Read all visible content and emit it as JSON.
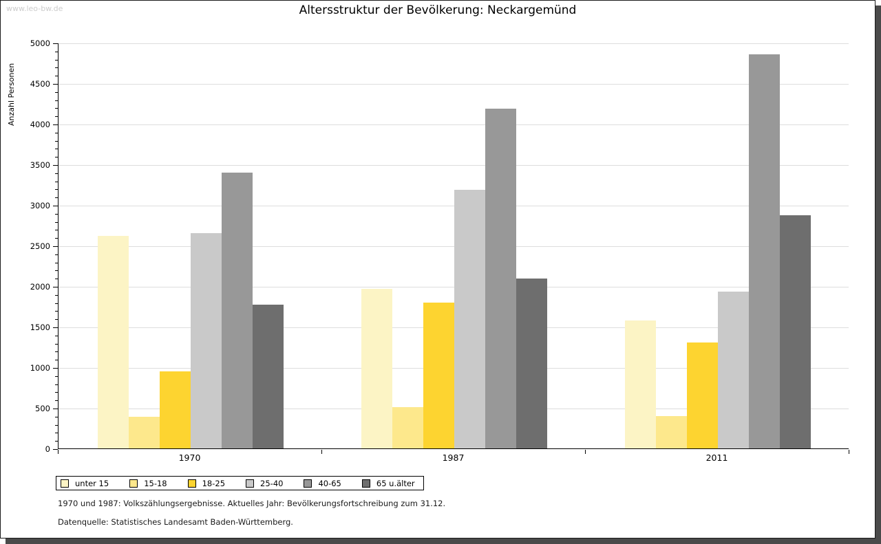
{
  "page": {
    "watermark": "www.leo-bw.de"
  },
  "chart_data": {
    "type": "bar",
    "title": "Altersstruktur der Bevölkerung: Neckargemünd",
    "xlabel": "",
    "ylabel": "Anzahl Personen",
    "categories": [
      "1970",
      "1987",
      "2011"
    ],
    "series": [
      {
        "name": "unter 15",
        "color": "#FCF4C5",
        "values": [
          2620,
          1970,
          1575
        ]
      },
      {
        "name": "15-18",
        "color": "#FDE88C",
        "values": [
          390,
          510,
          400
        ]
      },
      {
        "name": "18-25",
        "color": "#FDD430",
        "values": [
          950,
          1795,
          1305
        ]
      },
      {
        "name": "25-40",
        "color": "#C9C9C9",
        "values": [
          2650,
          3185,
          1930
        ]
      },
      {
        "name": "40-65",
        "color": "#989898",
        "values": [
          3395,
          4190,
          4855
        ]
      },
      {
        "name": "65 u.älter",
        "color": "#6E6E6E",
        "values": [
          1770,
          2090,
          2870
        ]
      }
    ],
    "ylim": [
      0,
      5000
    ],
    "ytick_step": 500,
    "minor_tick_step": 100,
    "grid": true,
    "legend_position": "bottom"
  },
  "footnotes": [
    "1970 und 1987: Volkszählungsergebnisse. Aktuelles Jahr: Bevölkerungsfortschreibung zum 31.12.",
    "Datenquelle: Statistisches Landesamt Baden-Württemberg."
  ]
}
